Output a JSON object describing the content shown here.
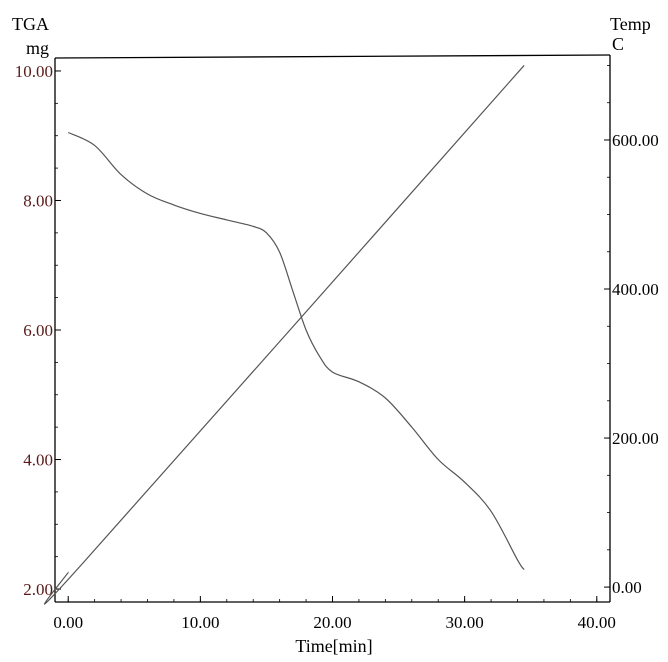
{
  "chart_data": {
    "type": "line",
    "left_axis": {
      "title": "TGA",
      "unit": "mg",
      "ticks": [
        "10.00",
        "8.00",
        "6.00",
        "4.00",
        "2.00"
      ],
      "tick_values": [
        10,
        8,
        6,
        4,
        2
      ],
      "range": [
        1.8,
        10.2
      ]
    },
    "right_axis": {
      "title": "Temp",
      "unit": "C",
      "ticks": [
        "600.00",
        "400.00",
        "200.00",
        "0.00"
      ],
      "tick_values": [
        600,
        400,
        200,
        0
      ],
      "range": [
        -20,
        710
      ]
    },
    "x_axis": {
      "label": "Time[min]",
      "ticks": [
        "0.00",
        "10.00",
        "20.00",
        "30.00",
        "40.00"
      ],
      "tick_values": [
        0,
        10,
        20,
        30,
        40
      ],
      "range": [
        -1,
        41
      ]
    },
    "series": [
      {
        "axis": "left",
        "color": "#555555",
        "x": [
          0,
          2,
          4,
          6,
          8,
          10,
          12,
          14,
          15,
          16,
          17,
          18,
          19,
          20,
          22,
          24,
          26,
          28,
          30,
          32,
          34,
          34.5
        ],
        "y": [
          9.05,
          8.85,
          8.4,
          8.1,
          7.93,
          7.8,
          7.7,
          7.6,
          7.5,
          7.2,
          6.6,
          6.0,
          5.6,
          5.35,
          5.2,
          4.95,
          4.5,
          4.0,
          3.65,
          3.2,
          2.45,
          2.3
        ]
      },
      {
        "axis": "right",
        "color": "#555555",
        "x": [
          0,
          1,
          34.5
        ],
        "y": [
          20,
          30,
          700
        ]
      }
    ],
    "grid": false,
    "legend": "none"
  }
}
